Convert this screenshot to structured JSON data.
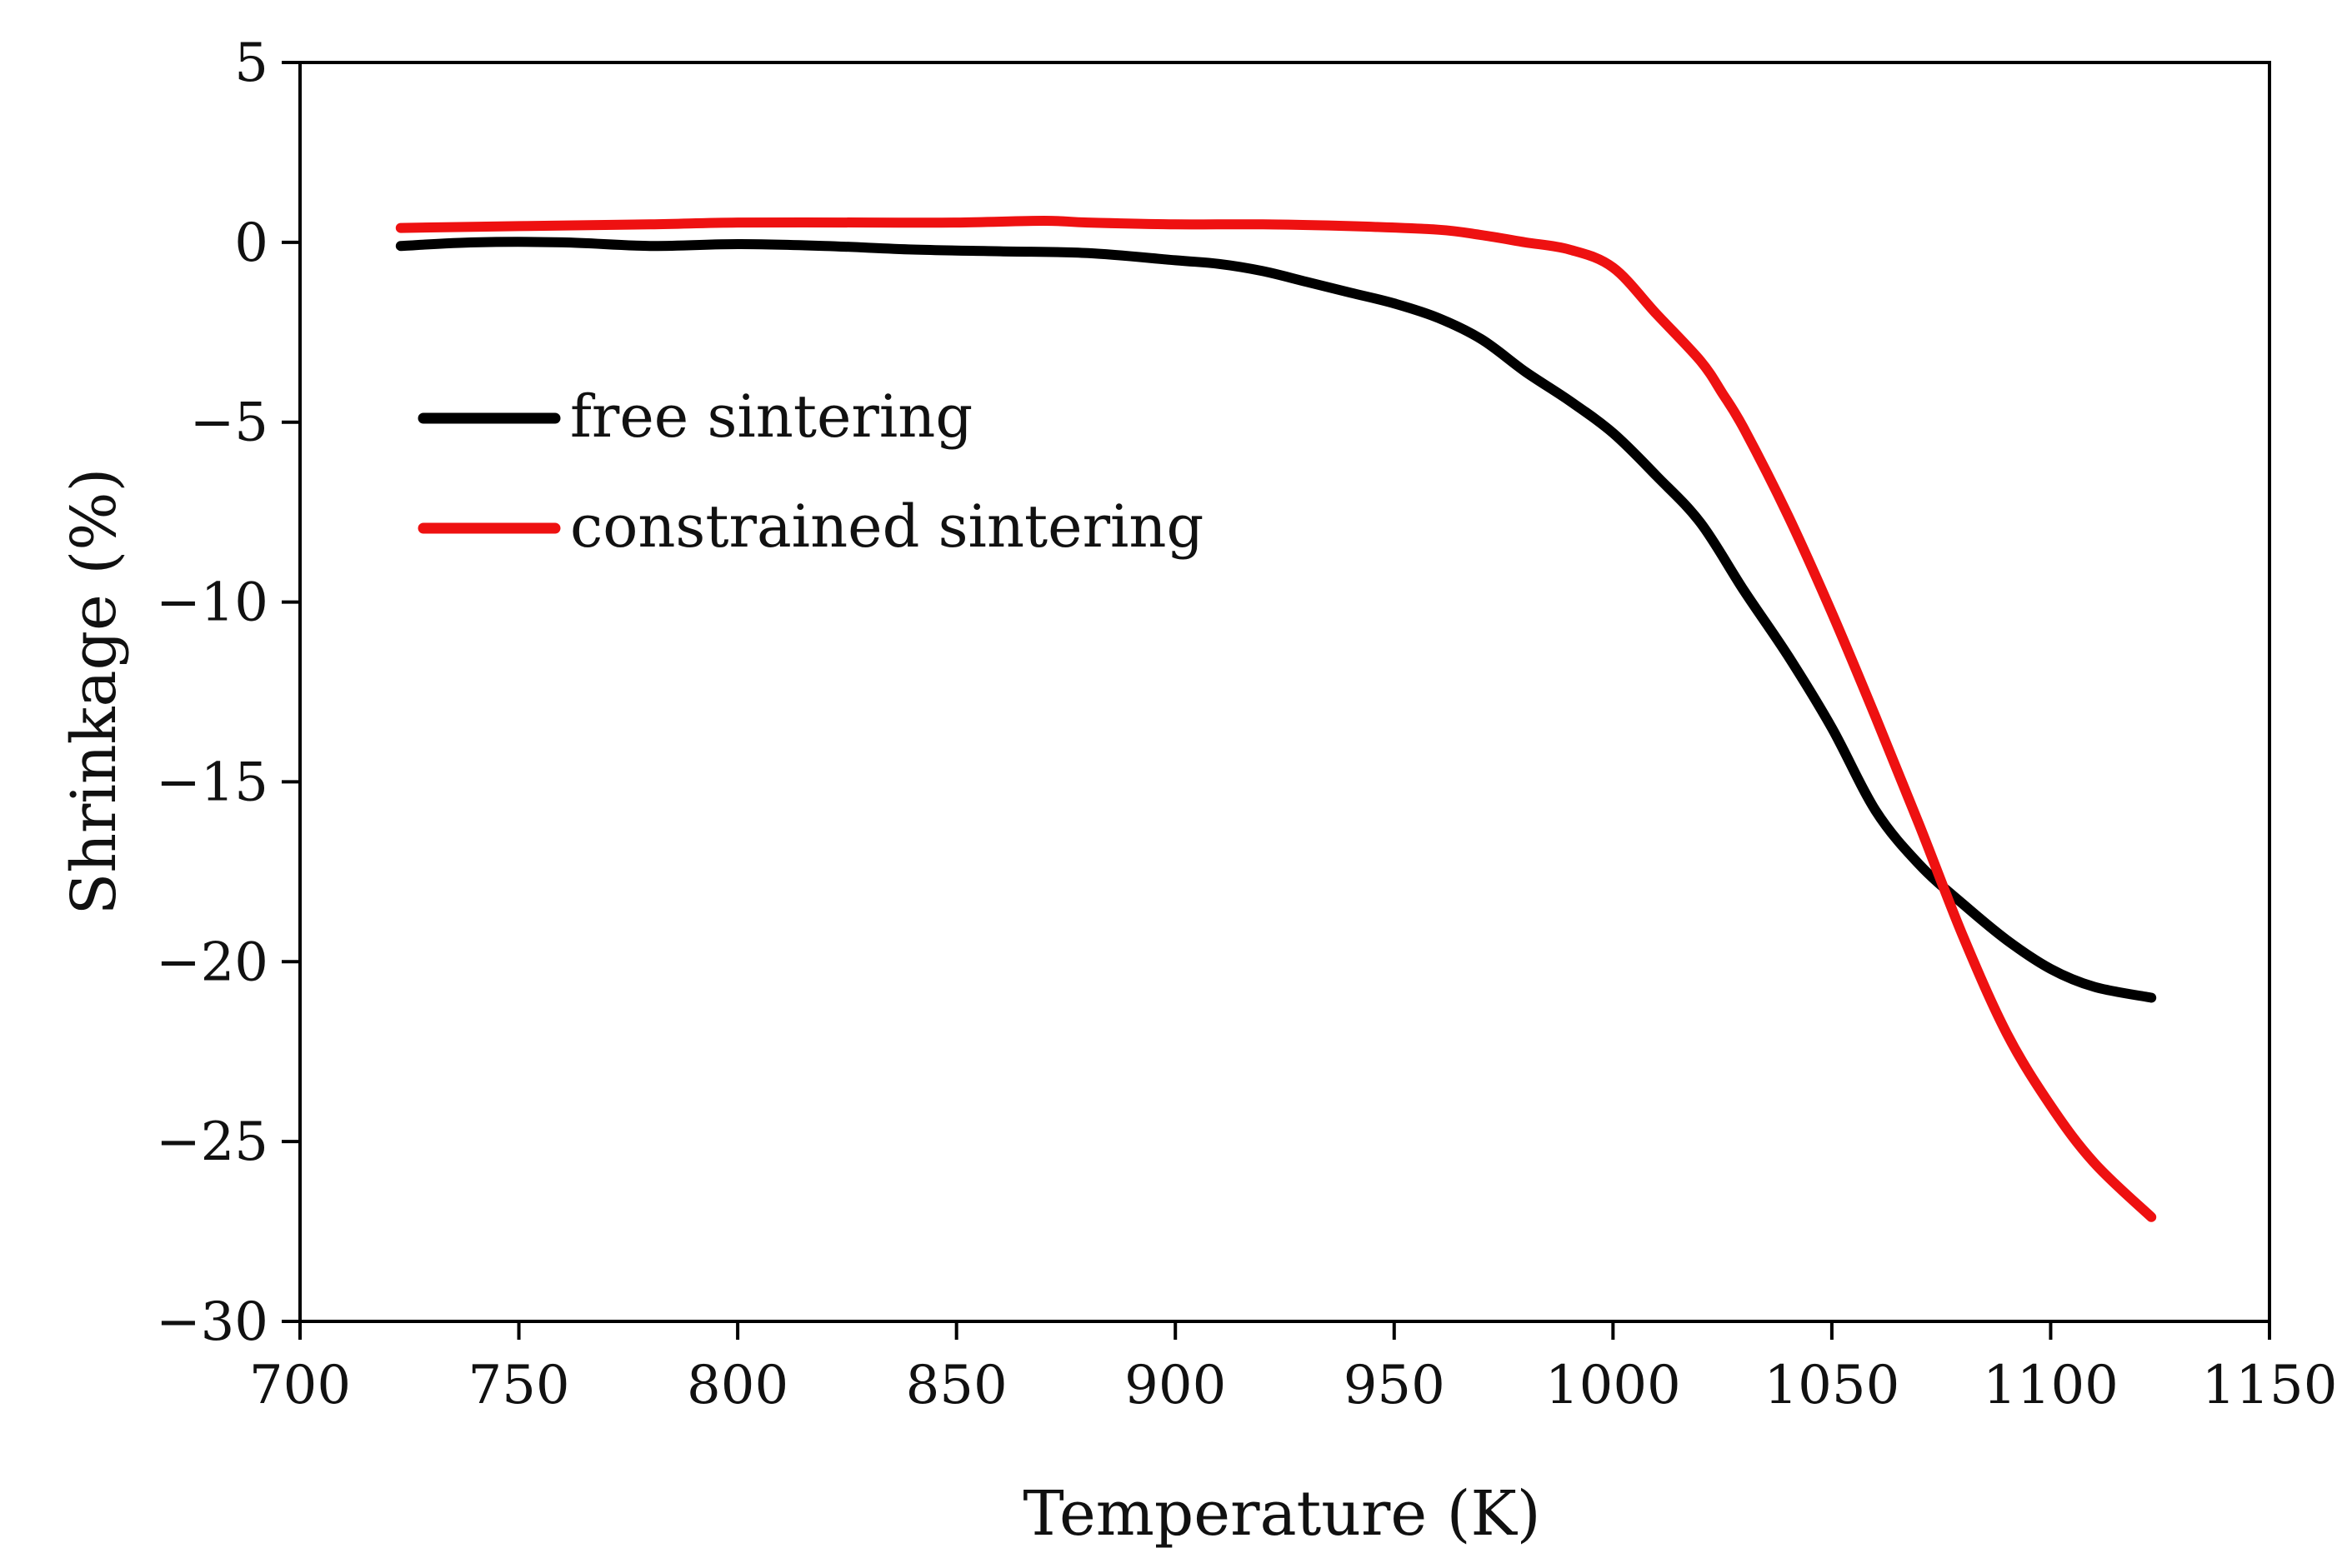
{
  "chart_data": {
    "type": "line",
    "title": "",
    "xlabel": "Temperature (K)",
    "ylabel": "Shrinkage (%)",
    "xlim": [
      700,
      1150
    ],
    "ylim": [
      -30,
      5
    ],
    "xticks": [
      700,
      750,
      800,
      850,
      900,
      950,
      1000,
      1050,
      1100,
      1150
    ],
    "yticks": [
      5,
      0,
      -5,
      -10,
      -15,
      -20,
      -25,
      -30
    ],
    "ytick_labels": [
      "5",
      "0",
      "−5",
      "−10",
      "−15",
      "−20",
      "−25",
      "−30"
    ],
    "grid": false,
    "legend_position": "upper-left",
    "series": [
      {
        "name": "free sintering",
        "color": "#000000",
        "x": [
          723,
          740,
          760,
          780,
          800,
          820,
          840,
          860,
          880,
          900,
          910,
          920,
          930,
          940,
          950,
          960,
          970,
          980,
          990,
          1000,
          1010,
          1020,
          1030,
          1040,
          1050,
          1060,
          1070,
          1080,
          1090,
          1100,
          1110,
          1123
        ],
        "y": [
          -0.1,
          0.0,
          0.0,
          -0.1,
          -0.05,
          -0.1,
          -0.2,
          -0.25,
          -0.3,
          -0.5,
          -0.6,
          -0.8,
          -1.1,
          -1.4,
          -1.7,
          -2.1,
          -2.7,
          -3.6,
          -4.4,
          -5.3,
          -6.5,
          -7.8,
          -9.7,
          -11.5,
          -13.5,
          -15.8,
          -17.3,
          -18.4,
          -19.4,
          -20.2,
          -20.7,
          -21.0
        ]
      },
      {
        "name": "constrained sintering",
        "color": "#ee1111",
        "x": [
          723,
          750,
          780,
          800,
          830,
          850,
          870,
          880,
          900,
          920,
          940,
          960,
          970,
          980,
          990,
          1000,
          1010,
          1020,
          1025,
          1030,
          1040,
          1050,
          1060,
          1070,
          1080,
          1090,
          1100,
          1110,
          1123
        ],
        "y": [
          0.4,
          0.45,
          0.5,
          0.55,
          0.55,
          0.55,
          0.6,
          0.55,
          0.5,
          0.5,
          0.45,
          0.35,
          0.2,
          0.0,
          -0.2,
          -0.7,
          -2.0,
          -3.3,
          -4.2,
          -5.2,
          -7.6,
          -10.3,
          -13.2,
          -16.2,
          -19.3,
          -22.0,
          -24.0,
          -25.6,
          -27.1
        ]
      }
    ]
  }
}
